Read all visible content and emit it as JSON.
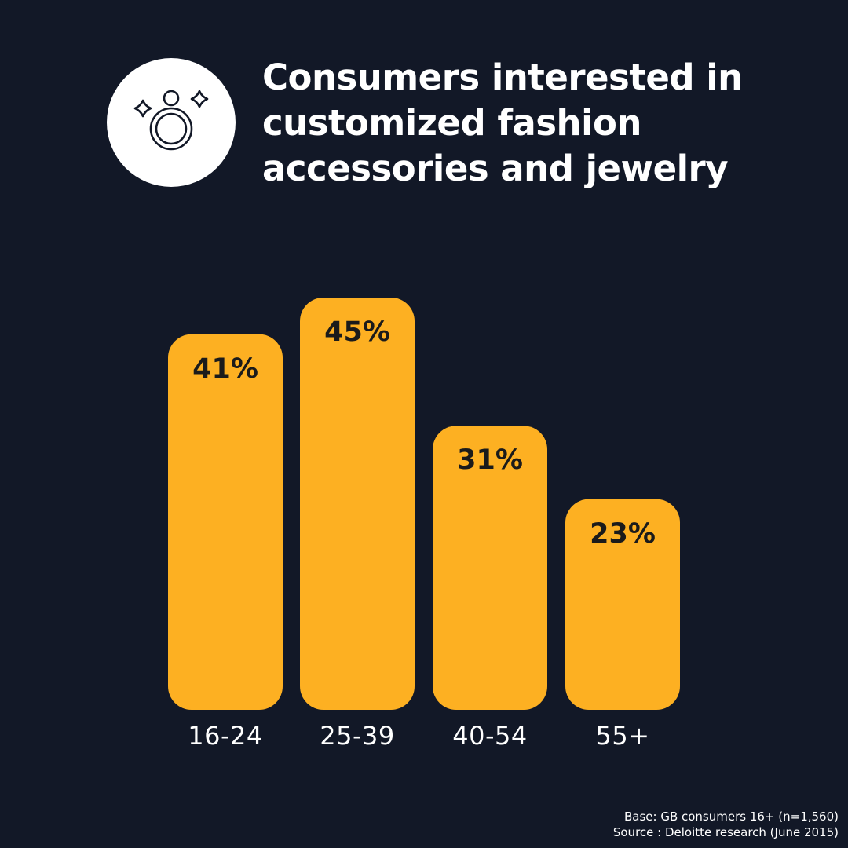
{
  "header": {
    "icon": "ring-icon",
    "title_lines": [
      "Consumers interested in",
      "customized fashion",
      "accessories and jewelry"
    ]
  },
  "chart_data": {
    "type": "bar",
    "categories": [
      "16-24",
      "25-39",
      "40-54",
      "55+"
    ],
    "values": [
      41,
      45,
      31,
      23
    ],
    "value_labels": [
      "41%",
      "45%",
      "31%",
      "23%"
    ],
    "title": "Consumers interested in customized fashion accessories and jewelry",
    "xlabel": "",
    "ylabel": "",
    "ylim": [
      0,
      45
    ],
    "grid": false,
    "bar_color": "#FDB022"
  },
  "footnote": {
    "base": "Base: GB consumers 16+ (n=1,560)",
    "source": "Source : Deloitte research (June 2015)"
  },
  "colors": {
    "background": "#121827",
    "bar": "#FDB022",
    "bar_label": "#1B1B1B",
    "text": "#FFFFFF"
  }
}
